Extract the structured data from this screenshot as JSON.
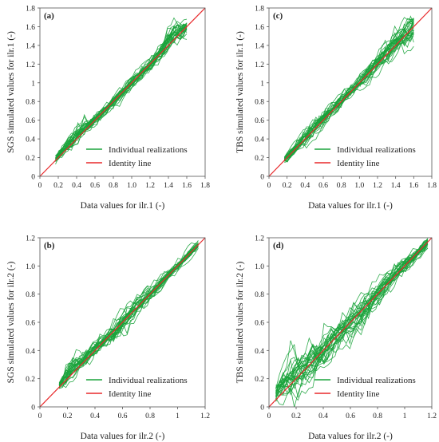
{
  "chart_data": [
    {
      "type": "line",
      "panel_label": "(a)",
      "xlabel": "Data values for ilr.1 (-)",
      "ylabel": "SGS simulated values for ilr.1 (-)",
      "xlim": [
        0,
        1.8
      ],
      "ylim": [
        0,
        1.8
      ],
      "xticks": [
        "0",
        "0.2",
        "0.4",
        "0.6",
        "0.8",
        "1.0",
        "1.2",
        "1.4",
        "1.6",
        "1.8"
      ],
      "yticks": [
        "0",
        "0.2",
        "0.4",
        "0.6",
        "0.8",
        "1",
        "1.2",
        "1.4",
        "1.6",
        "1.8"
      ],
      "legend": {
        "placement": "bottom-right",
        "entries": [
          "Individual realizations",
          "Identity line"
        ]
      },
      "data_range": [
        0.17,
        1.6
      ],
      "realizations": 30,
      "spread_profile": [
        [
          0.17,
          0.03
        ],
        [
          0.3,
          0.04
        ],
        [
          0.42,
          0.07
        ],
        [
          0.55,
          0.04
        ],
        [
          0.75,
          0.03
        ],
        [
          1.0,
          0.03
        ],
        [
          1.25,
          0.04
        ],
        [
          1.4,
          0.08
        ],
        [
          1.6,
          0.05
        ]
      ],
      "bias_profile": [
        [
          0.17,
          0.02
        ],
        [
          0.42,
          0.04
        ],
        [
          0.6,
          0.0
        ],
        [
          1.3,
          0.0
        ],
        [
          1.45,
          0.08
        ],
        [
          1.6,
          0.0
        ]
      ],
      "series": [
        {
          "name": "Individual realizations",
          "color": "#1aa33b"
        },
        {
          "name": "Identity line",
          "color": "#e8282a",
          "x": [
            0,
            1.8
          ],
          "y": [
            0,
            1.8
          ]
        }
      ]
    },
    {
      "type": "line",
      "panel_label": "(c)",
      "xlabel": "Data values for ilr.1 (-)",
      "ylabel": "TBS simulated values for ilr.1 (-)",
      "xlim": [
        0,
        1.8
      ],
      "ylim": [
        0,
        1.8
      ],
      "xticks": [
        "0",
        "0.2",
        "0.4",
        "0.6",
        "0.8",
        "1.0",
        "1.2",
        "1.4",
        "1.6",
        "1.8"
      ],
      "yticks": [
        "0",
        "0.2",
        "0.4",
        "0.6",
        "0.8",
        "1",
        "1.2",
        "1.4",
        "1.6",
        "1.8"
      ],
      "legend": {
        "placement": "bottom-right",
        "entries": [
          "Individual realizations",
          "Identity line"
        ]
      },
      "data_range": [
        0.17,
        1.6
      ],
      "realizations": 30,
      "spread_profile": [
        [
          0.17,
          0.03
        ],
        [
          0.4,
          0.05
        ],
        [
          0.6,
          0.05
        ],
        [
          0.8,
          0.04
        ],
        [
          1.0,
          0.04
        ],
        [
          1.2,
          0.05
        ],
        [
          1.4,
          0.08
        ],
        [
          1.6,
          0.1
        ]
      ],
      "bias_profile": [
        [
          0.17,
          0.01
        ],
        [
          0.5,
          0.02
        ],
        [
          1.0,
          0.0
        ],
        [
          1.4,
          0.03
        ],
        [
          1.6,
          0.0
        ]
      ],
      "series": [
        {
          "name": "Individual realizations",
          "color": "#1aa33b"
        },
        {
          "name": "Identity line",
          "color": "#e8282a",
          "x": [
            0,
            1.8
          ],
          "y": [
            0,
            1.8
          ]
        }
      ]
    },
    {
      "type": "line",
      "panel_label": "(b)",
      "xlabel": "Data values for ilr.2 (-)",
      "ylabel": "SGS simulated values for ilr.2 (-)",
      "xlim": [
        0,
        1.2
      ],
      "ylim": [
        0,
        1.2
      ],
      "xticks": [
        "0",
        "0.2",
        "0.4",
        "0.6",
        "0.8",
        "1",
        "1.2"
      ],
      "yticks": [
        "0",
        "0.2",
        "0.4",
        "0.6",
        "0.8",
        "1.0",
        "1.2"
      ],
      "legend": {
        "placement": "bottom-right",
        "entries": [
          "Individual realizations",
          "Identity line"
        ]
      },
      "data_range": [
        0.14,
        1.15
      ],
      "realizations": 30,
      "spread_profile": [
        [
          0.14,
          0.02
        ],
        [
          0.2,
          0.05
        ],
        [
          0.3,
          0.04
        ],
        [
          0.4,
          0.03
        ],
        [
          0.6,
          0.05
        ],
        [
          0.8,
          0.03
        ],
        [
          1.0,
          0.02
        ],
        [
          1.15,
          0.02
        ]
      ],
      "bias_profile": [
        [
          0.14,
          0.01
        ],
        [
          0.25,
          0.03
        ],
        [
          0.5,
          0.0
        ],
        [
          1.15,
          0.0
        ]
      ],
      "series": [
        {
          "name": "Individual realizations",
          "color": "#1aa33b"
        },
        {
          "name": "Identity line",
          "color": "#e8282a",
          "x": [
            0,
            1.2
          ],
          "y": [
            0,
            1.2
          ]
        }
      ]
    },
    {
      "type": "line",
      "panel_label": "(d)",
      "xlabel": "Data values for ilr.2 (-)",
      "ylabel": "TBS simulated values for ilr.2 (-)",
      "xlim": [
        0,
        1.2
      ],
      "ylim": [
        0,
        1.2
      ],
      "xticks": [
        "0",
        "0.2",
        "0.4",
        "0.6",
        "0.8",
        "1",
        "1.2"
      ],
      "yticks": [
        "0",
        "0.2",
        "0.4",
        "0.6",
        "0.8",
        "1.0",
        "1.2"
      ],
      "legend": {
        "placement": "bottom-right",
        "entries": [
          "Individual realizations",
          "Identity line"
        ]
      },
      "data_range": [
        0.05,
        1.17
      ],
      "realizations": 30,
      "spread_profile": [
        [
          0.05,
          0.05
        ],
        [
          0.2,
          0.09
        ],
        [
          0.35,
          0.07
        ],
        [
          0.5,
          0.06
        ],
        [
          0.7,
          0.06
        ],
        [
          0.9,
          0.04
        ],
        [
          1.1,
          0.03
        ],
        [
          1.17,
          0.02
        ]
      ],
      "bias_profile": [
        [
          0.05,
          0.06
        ],
        [
          0.2,
          0.04
        ],
        [
          0.4,
          0.01
        ],
        [
          0.7,
          0.0
        ],
        [
          1.17,
          0.0
        ]
      ],
      "series": [
        {
          "name": "Individual realizations",
          "color": "#1aa33b"
        },
        {
          "name": "Identity line",
          "color": "#e8282a",
          "x": [
            0,
            1.2
          ],
          "y": [
            0,
            1.2
          ]
        }
      ]
    }
  ]
}
